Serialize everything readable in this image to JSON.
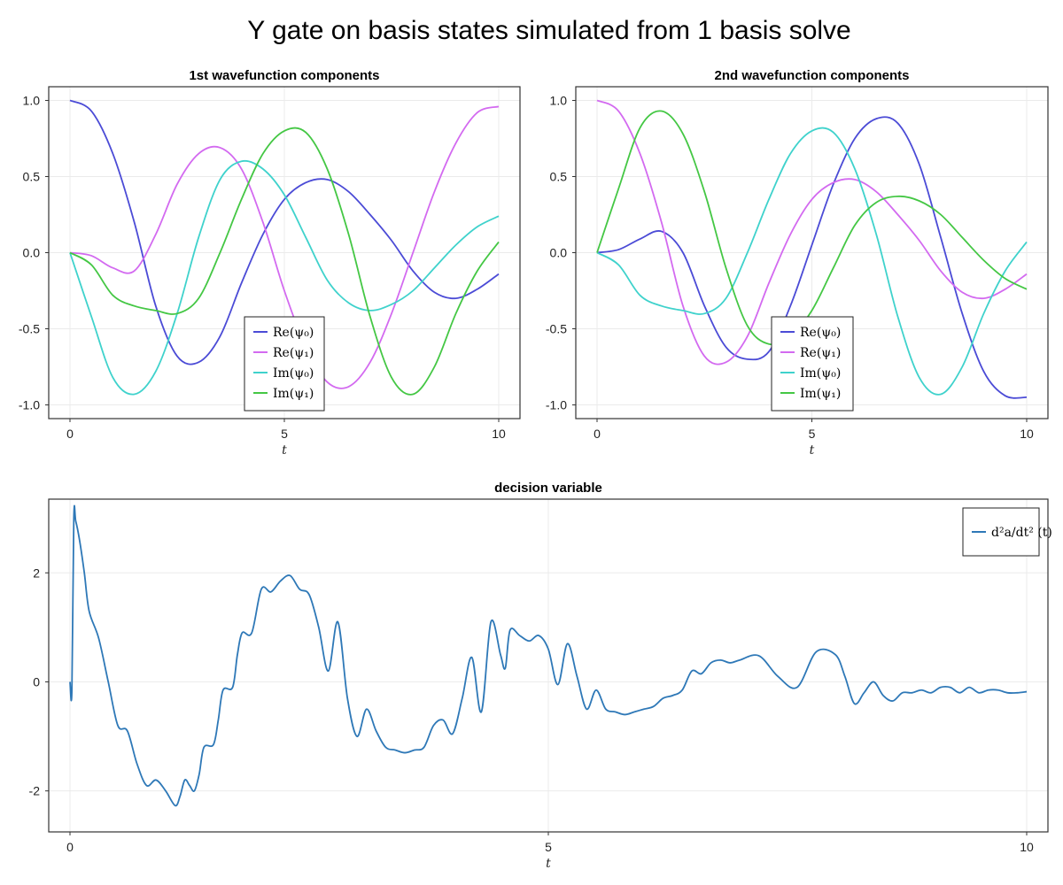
{
  "figure": {
    "title": "Y gate on basis states simulated from 1 basis solve"
  },
  "chart_data": [
    {
      "type": "line",
      "title": "1st wavefunction components",
      "xlabel": "t",
      "ylabel": "",
      "xlim": [
        0,
        10
      ],
      "ylim": [
        -1.0,
        1.0
      ],
      "xticks": [
        "0",
        "5",
        "10"
      ],
      "yticks": [
        "-1.0",
        "-0.5",
        "0.0",
        "0.5",
        "1.0"
      ],
      "grid": true,
      "legend_position": "bottom-center",
      "series": [
        {
          "name": "Re(ψ₀)",
          "color": "#4b4bd6",
          "x": [
            0,
            0.5,
            1,
            1.5,
            2,
            2.5,
            3,
            3.5,
            4,
            4.5,
            5,
            5.5,
            6,
            6.5,
            7,
            7.5,
            8,
            8.5,
            9,
            9.5,
            10
          ],
          "y": [
            1.0,
            0.93,
            0.65,
            0.2,
            -0.35,
            -0.68,
            -0.72,
            -0.55,
            -0.2,
            0.12,
            0.35,
            0.46,
            0.48,
            0.4,
            0.25,
            0.08,
            -0.12,
            -0.26,
            -0.3,
            -0.24,
            -0.14
          ]
        },
        {
          "name": "Re(ψ₁)",
          "color": "#d36af0",
          "x": [
            0,
            0.5,
            1,
            1.5,
            2,
            2.5,
            3,
            3.5,
            4,
            4.5,
            5,
            5.5,
            6,
            6.5,
            7,
            7.5,
            8,
            8.5,
            9,
            9.5,
            10
          ],
          "y": [
            0.0,
            -0.02,
            -0.1,
            -0.12,
            0.12,
            0.45,
            0.65,
            0.69,
            0.55,
            0.2,
            -0.25,
            -0.62,
            -0.85,
            -0.88,
            -0.72,
            -0.4,
            0.0,
            0.4,
            0.72,
            0.92,
            0.96
          ]
        },
        {
          "name": "Im(ψ₀)",
          "color": "#3fd2cc",
          "x": [
            0,
            0.5,
            1,
            1.5,
            2,
            2.5,
            3,
            3.5,
            4,
            4.5,
            5,
            5.5,
            6,
            6.5,
            7,
            7.5,
            8,
            8.5,
            9,
            9.5,
            10
          ],
          "y": [
            0.0,
            -0.42,
            -0.82,
            -0.93,
            -0.78,
            -0.4,
            0.1,
            0.48,
            0.6,
            0.55,
            0.38,
            0.1,
            -0.18,
            -0.33,
            -0.38,
            -0.34,
            -0.25,
            -0.1,
            0.05,
            0.17,
            0.24
          ]
        },
        {
          "name": "Im(ψ₁)",
          "color": "#44c744",
          "x": [
            0,
            0.5,
            1,
            1.5,
            2,
            2.5,
            3,
            3.5,
            4,
            4.5,
            5,
            5.5,
            6,
            6.5,
            7,
            7.5,
            8,
            8.5,
            9,
            9.5,
            10
          ],
          "y": [
            0.0,
            -0.08,
            -0.28,
            -0.35,
            -0.38,
            -0.4,
            -0.3,
            0.0,
            0.35,
            0.65,
            0.8,
            0.79,
            0.55,
            0.12,
            -0.42,
            -0.82,
            -0.93,
            -0.75,
            -0.4,
            -0.12,
            0.07
          ]
        }
      ]
    },
    {
      "type": "line",
      "title": "2nd wavefunction components",
      "xlabel": "t",
      "ylabel": "",
      "xlim": [
        0,
        10
      ],
      "ylim": [
        -1.0,
        1.0
      ],
      "xticks": [
        "0",
        "5",
        "10"
      ],
      "yticks": [
        "-1.0",
        "-0.5",
        "0.0",
        "0.5",
        "1.0"
      ],
      "grid": true,
      "legend_position": "bottom-center",
      "series": [
        {
          "name": "Re(ψ₀)",
          "color": "#4b4bd6",
          "x": [
            0,
            0.5,
            1,
            1.5,
            2,
            2.5,
            3,
            3.5,
            4,
            4.5,
            5,
            5.5,
            6,
            6.5,
            7,
            7.5,
            8,
            8.5,
            9,
            9.5,
            10
          ],
          "y": [
            0.0,
            0.02,
            0.09,
            0.14,
            0.0,
            -0.35,
            -0.62,
            -0.7,
            -0.65,
            -0.35,
            0.05,
            0.45,
            0.75,
            0.88,
            0.85,
            0.58,
            0.1,
            -0.4,
            -0.78,
            -0.94,
            -0.95
          ]
        },
        {
          "name": "Re(ψ₁)",
          "color": "#d36af0",
          "x": [
            0,
            0.5,
            1,
            1.5,
            2,
            2.5,
            3,
            3.5,
            4,
            4.5,
            5,
            5.5,
            6,
            6.5,
            7,
            7.5,
            8,
            8.5,
            9,
            9.5,
            10
          ],
          "y": [
            1.0,
            0.93,
            0.65,
            0.2,
            -0.35,
            -0.68,
            -0.72,
            -0.55,
            -0.2,
            0.12,
            0.35,
            0.46,
            0.48,
            0.4,
            0.25,
            0.08,
            -0.12,
            -0.26,
            -0.3,
            -0.24,
            -0.14
          ]
        },
        {
          "name": "Im(ψ₀)",
          "color": "#3fd2cc",
          "x": [
            0,
            0.5,
            1,
            1.5,
            2,
            2.5,
            3,
            3.5,
            4,
            4.5,
            5,
            5.5,
            6,
            6.5,
            7,
            7.5,
            8,
            8.5,
            9,
            9.5,
            10
          ],
          "y": [
            0.0,
            -0.08,
            -0.28,
            -0.35,
            -0.38,
            -0.4,
            -0.3,
            0.0,
            0.35,
            0.65,
            0.8,
            0.79,
            0.55,
            0.12,
            -0.42,
            -0.82,
            -0.93,
            -0.75,
            -0.4,
            -0.12,
            0.07
          ]
        },
        {
          "name": "Im(ψ₁)",
          "color": "#44c744",
          "x": [
            0,
            0.5,
            1,
            1.5,
            2,
            2.5,
            3,
            3.5,
            4,
            4.5,
            5,
            5.5,
            6,
            6.5,
            7,
            7.5,
            8,
            8.5,
            9,
            9.5,
            10
          ],
          "y": [
            0.0,
            0.42,
            0.82,
            0.93,
            0.78,
            0.4,
            -0.1,
            -0.48,
            -0.6,
            -0.55,
            -0.38,
            -0.1,
            0.18,
            0.33,
            0.37,
            0.34,
            0.25,
            0.1,
            -0.05,
            -0.17,
            -0.24
          ]
        }
      ]
    },
    {
      "type": "line",
      "title": "decision variable",
      "xlabel": "t",
      "ylabel": "",
      "xlim": [
        0,
        10
      ],
      "ylim": [
        -2.5,
        3.1
      ],
      "xticks": [
        "0",
        "5",
        "10"
      ],
      "yticks": [
        "-2",
        "0",
        "2"
      ],
      "grid": true,
      "legend_position": "top-right",
      "series": [
        {
          "name": "d²a/dt² (t)",
          "color": "#2e78b7",
          "x": [
            0,
            0.02,
            0.04,
            0.06,
            0.1,
            0.15,
            0.2,
            0.3,
            0.4,
            0.5,
            0.6,
            0.7,
            0.8,
            0.9,
            1.0,
            1.1,
            1.15,
            1.2,
            1.25,
            1.3,
            1.35,
            1.4,
            1.5,
            1.55,
            1.6,
            1.7,
            1.75,
            1.8,
            1.9,
            2.0,
            2.1,
            2.2,
            2.3,
            2.4,
            2.5,
            2.6,
            2.7,
            2.8,
            2.9,
            3.0,
            3.1,
            3.2,
            3.3,
            3.4,
            3.5,
            3.6,
            3.7,
            3.8,
            3.9,
            4.0,
            4.1,
            4.2,
            4.3,
            4.4,
            4.5,
            4.55,
            4.6,
            4.7,
            4.8,
            4.9,
            5.0,
            5.1,
            5.2,
            5.3,
            5.4,
            5.5,
            5.6,
            5.7,
            5.8,
            5.9,
            6.0,
            6.1,
            6.2,
            6.3,
            6.4,
            6.5,
            6.6,
            6.7,
            6.8,
            6.9,
            7.0,
            7.2,
            7.4,
            7.6,
            7.8,
            8.0,
            8.1,
            8.2,
            8.3,
            8.4,
            8.5,
            8.6,
            8.7,
            8.8,
            8.9,
            9.0,
            9.1,
            9.2,
            9.3,
            9.4,
            9.5,
            9.6,
            9.7,
            9.8,
            9.9,
            10.0
          ],
          "y": [
            0.0,
            -0.15,
            3.0,
            2.95,
            2.6,
            2.0,
            1.3,
            0.8,
            0.0,
            -0.8,
            -0.9,
            -1.5,
            -1.9,
            -1.8,
            -2.0,
            -2.27,
            -2.1,
            -1.8,
            -1.9,
            -2.0,
            -1.7,
            -1.2,
            -1.15,
            -0.7,
            -0.15,
            -0.1,
            0.5,
            0.9,
            0.9,
            1.7,
            1.65,
            1.85,
            1.95,
            1.7,
            1.6,
            1.0,
            0.2,
            1.1,
            -0.3,
            -1.0,
            -0.5,
            -0.9,
            -1.2,
            -1.25,
            -1.3,
            -1.25,
            -1.2,
            -0.8,
            -0.7,
            -0.95,
            -0.3,
            0.45,
            -0.55,
            1.1,
            0.5,
            0.25,
            0.95,
            0.85,
            0.75,
            0.85,
            0.6,
            -0.05,
            0.7,
            0.1,
            -0.5,
            -0.15,
            -0.5,
            -0.55,
            -0.6,
            -0.55,
            -0.5,
            -0.45,
            -0.3,
            -0.25,
            -0.15,
            0.2,
            0.15,
            0.35,
            0.4,
            0.35,
            0.4,
            0.48,
            0.1,
            -0.1,
            0.55,
            0.5,
            0.1,
            -0.4,
            -0.2,
            0.0,
            -0.25,
            -0.35,
            -0.2,
            -0.2,
            -0.15,
            -0.2,
            -0.1,
            -0.1,
            -0.2,
            -0.1,
            -0.2,
            -0.15,
            -0.15,
            -0.2,
            -0.2,
            -0.18
          ]
        }
      ]
    }
  ]
}
